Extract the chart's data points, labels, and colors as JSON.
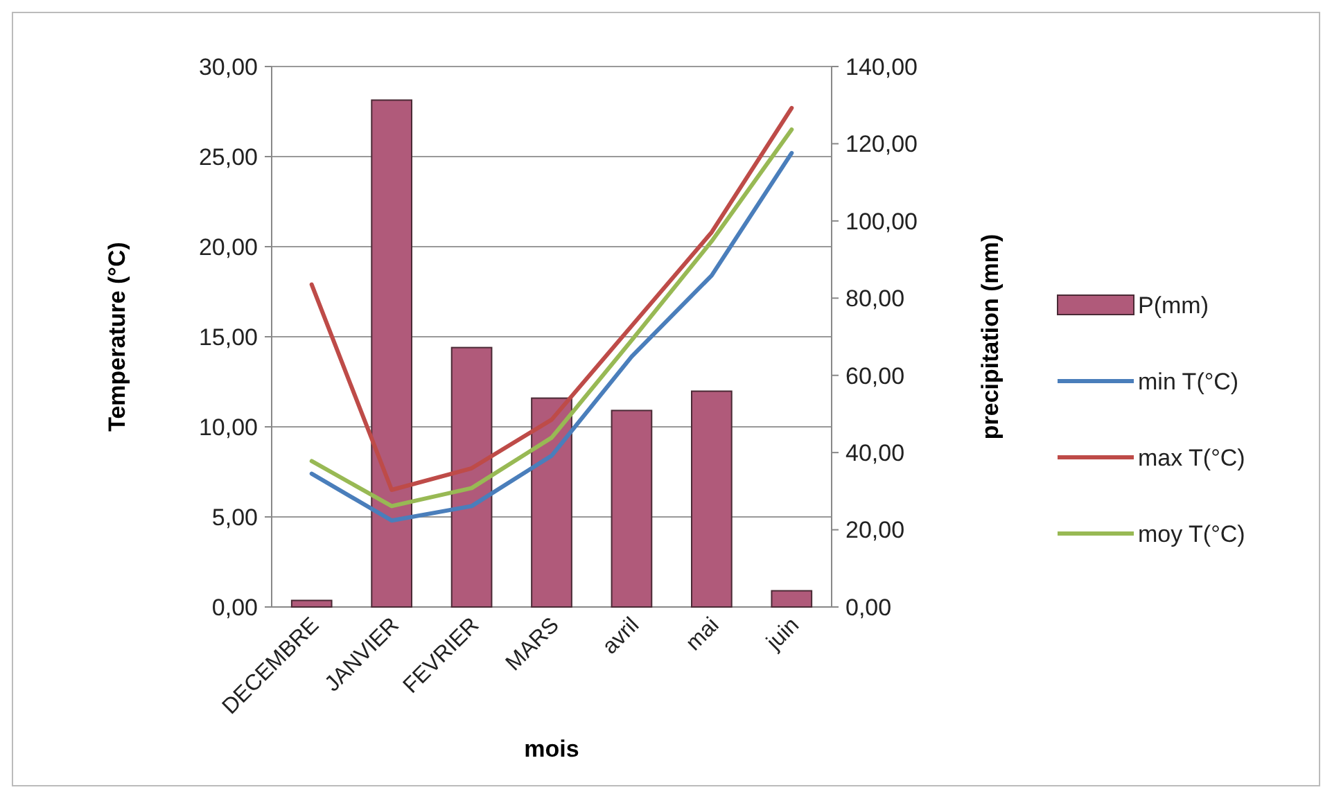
{
  "chart_data": {
    "type": "bar",
    "xlabel": "mois",
    "ylabel": "Temperature (°C)",
    "y2label": "precipitation (mm)",
    "categories": [
      "DECEMBRE",
      "JANVIER",
      "FEVRIER",
      "MARS",
      "avril",
      "mai",
      "juin"
    ],
    "series": [
      {
        "name": "P(mm)",
        "axis": "y2",
        "color": "#b05a7a",
        "values": [
          1.7,
          131.3,
          67.2,
          54.1,
          50.9,
          55.9,
          4.2
        ]
      },
      {
        "name": "min T(°C)",
        "type": "line",
        "color": "#4a7ebb",
        "values": [
          7.4,
          4.8,
          5.6,
          8.4,
          13.9,
          18.4,
          25.2
        ]
      },
      {
        "name": "max T(°C)",
        "type": "line",
        "color": "#be4b48",
        "values": [
          17.9,
          6.5,
          7.7,
          10.4,
          15.6,
          20.8,
          27.7
        ]
      },
      {
        "name": "moy T(°C)",
        "type": "line",
        "color": "#98b954",
        "values": [
          8.1,
          5.6,
          6.6,
          9.4,
          14.8,
          20.3,
          26.5
        ]
      }
    ],
    "ylim": [
      0,
      30
    ],
    "yticks": [
      {
        "value": 0,
        "label": "0,00"
      },
      {
        "value": 5,
        "label": "5,00"
      },
      {
        "value": 10,
        "label": "10,00"
      },
      {
        "value": 15,
        "label": "15,00"
      },
      {
        "value": 20,
        "label": "20,00"
      },
      {
        "value": 25,
        "label": "25,00"
      },
      {
        "value": 30,
        "label": "30,00"
      }
    ],
    "y2lim": [
      0,
      140
    ],
    "y2ticks": [
      {
        "value": 0,
        "label": "0,00"
      },
      {
        "value": 20,
        "label": "20,00"
      },
      {
        "value": 40,
        "label": "40,00"
      },
      {
        "value": 60,
        "label": "60,00"
      },
      {
        "value": 80,
        "label": "80,00"
      },
      {
        "value": 100,
        "label": "100,00"
      },
      {
        "value": 120,
        "label": "120,00"
      },
      {
        "value": 140,
        "label": "140,00"
      }
    ],
    "grid": "y",
    "legend": "right",
    "marker": "none",
    "line_style": "solid"
  }
}
